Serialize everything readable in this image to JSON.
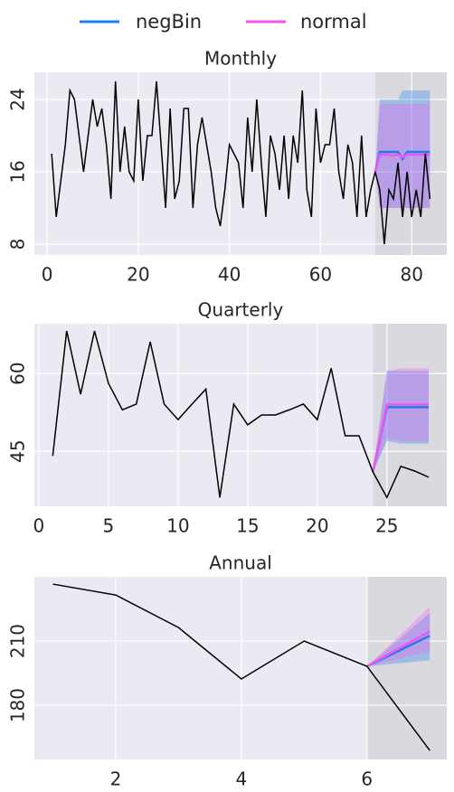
{
  "legend": [
    {
      "name": "negBin",
      "color": "#1a7fec"
    },
    {
      "name": "normal",
      "color": "#ee55f2"
    }
  ],
  "chart_data": [
    {
      "type": "forecast-line",
      "title": "Monthly",
      "x": [
        1,
        2,
        3,
        4,
        5,
        6,
        7,
        8,
        9,
        10,
        11,
        12,
        13,
        14,
        15,
        16,
        17,
        18,
        19,
        20,
        21,
        22,
        23,
        24,
        25,
        26,
        27,
        28,
        29,
        30,
        31,
        32,
        33,
        34,
        35,
        36,
        37,
        38,
        39,
        40,
        41,
        42,
        43,
        44,
        45,
        46,
        47,
        48,
        49,
        50,
        51,
        52,
        53,
        54,
        55,
        56,
        57,
        58,
        59,
        60,
        61,
        62,
        63,
        64,
        65,
        66,
        67,
        68,
        69,
        70,
        71,
        72,
        73,
        74,
        75,
        76,
        77,
        78,
        79,
        80,
        81,
        82,
        83,
        84
      ],
      "values": [
        18,
        11,
        15,
        19,
        25,
        24,
        20,
        16,
        20,
        24,
        21,
        23,
        19,
        13,
        26,
        16,
        21,
        16,
        15,
        24,
        15,
        20,
        20,
        26,
        19,
        12,
        23,
        13,
        15,
        23,
        23,
        12,
        19,
        22,
        19,
        16,
        12,
        10,
        14,
        19,
        18,
        17,
        12,
        22,
        16,
        24,
        17,
        11,
        20,
        18,
        14,
        20,
        13,
        20,
        17,
        25,
        14,
        11,
        23,
        17,
        19,
        19,
        23,
        16,
        13,
        19,
        17,
        11,
        20,
        11,
        14,
        16,
        14,
        8,
        14,
        13,
        17,
        11,
        16,
        11,
        14,
        11,
        18,
        13
      ],
      "forecast_start": 72,
      "forecasts": [
        {
          "x": [
            72,
            73,
            74,
            75,
            76,
            77,
            78,
            79,
            80,
            81,
            82,
            83,
            84
          ],
          "values": [
            16,
            18.2,
            18.2,
            18.2,
            18.2,
            18.2,
            17.4,
            18.2,
            18.2,
            18.2,
            18.2,
            18.2,
            18.2
          ],
          "lower": [
            16,
            12,
            12,
            12,
            12,
            12,
            12,
            12,
            12,
            12,
            12,
            12,
            12
          ],
          "upper": [
            16,
            24,
            24,
            24,
            24,
            24,
            25,
            25,
            25,
            25,
            25,
            25,
            25
          ]
        },
        {
          "x": [
            72,
            73,
            74,
            75,
            76,
            77,
            78,
            79,
            80,
            81,
            82,
            83,
            84
          ],
          "values": [
            16,
            17.9,
            17.9,
            17.9,
            17.8,
            17.9,
            17.6,
            17.9,
            17.9,
            17.9,
            17.9,
            17.9,
            17.9
          ],
          "lower": [
            16,
            12,
            12,
            12,
            12,
            12,
            12,
            12,
            12,
            12,
            12,
            12,
            12
          ],
          "upper": [
            16,
            23.5,
            23.5,
            23.5,
            23.5,
            23.5,
            23.5,
            23.5,
            23.5,
            23.5,
            23.5,
            23.5,
            23.5
          ]
        }
      ],
      "xlim": [
        -2.8,
        87.7
      ],
      "xticks": [
        0,
        20,
        40,
        60,
        80
      ],
      "ylim": [
        6.8,
        27
      ],
      "yticks": [
        8,
        16,
        24
      ],
      "grid": true
    },
    {
      "type": "forecast-line",
      "title": "Quarterly",
      "x": [
        1,
        2,
        3,
        4,
        5,
        6,
        7,
        8,
        9,
        10,
        11,
        12,
        13,
        14,
        15,
        16,
        17,
        18,
        19,
        20,
        21,
        22,
        23,
        24,
        25,
        26,
        27,
        28
      ],
      "values": [
        44.1,
        68.2,
        56,
        68.2,
        58.1,
        53,
        54.1,
        66.1,
        54.1,
        51.1,
        54.1,
        57,
        36.1,
        54.1,
        50.1,
        52,
        52,
        53,
        54.1,
        51.1,
        61,
        48,
        48,
        41,
        36.1,
        42.1,
        41.2,
        40
      ],
      "forecast_start": 24,
      "forecasts": [
        {
          "x": [
            24,
            25,
            26,
            27,
            28
          ],
          "values": [
            41,
            53.5,
            53.5,
            53.5,
            53.5
          ],
          "lower": [
            41,
            47,
            46.5,
            46.5,
            46.5
          ],
          "upper": [
            41,
            60.5,
            60.5,
            60.5,
            60.5
          ]
        },
        {
          "x": [
            24,
            25,
            26,
            27,
            28
          ],
          "values": [
            41,
            54,
            54,
            54,
            54
          ],
          "lower": [
            41,
            47.5,
            47,
            47,
            47
          ],
          "upper": [
            41,
            60.5,
            61,
            61,
            61
          ]
        }
      ],
      "xlim": [
        -0.32,
        29.3
      ],
      "xticks": [
        0,
        5,
        10,
        15,
        20,
        25
      ],
      "ylim": [
        34.4,
        69.6
      ],
      "yticks": [
        45,
        60
      ],
      "grid": true
    },
    {
      "type": "forecast-line",
      "title": "Annual",
      "x": [
        1,
        2,
        3,
        4,
        5,
        6,
        7
      ],
      "values": [
        236.6,
        231.5,
        216.3,
        192.3,
        210,
        198.2,
        158.9
      ],
      "forecast_start": 6,
      "forecasts": [
        {
          "x": [
            6,
            7
          ],
          "values": [
            198.2,
            212.5
          ],
          "lower": [
            198.2,
            201
          ],
          "upper": [
            198.2,
            223
          ]
        },
        {
          "x": [
            6,
            7
          ],
          "values": [
            198.2,
            214.5
          ],
          "lower": [
            198.2,
            205
          ],
          "upper": [
            198.2,
            226
          ]
        }
      ],
      "xlim": [
        0.705,
        7.27
      ],
      "xticks": [
        2,
        4,
        6
      ],
      "ylim": [
        154.7,
        240
      ],
      "yticks": [
        180,
        210
      ],
      "grid": true
    }
  ]
}
